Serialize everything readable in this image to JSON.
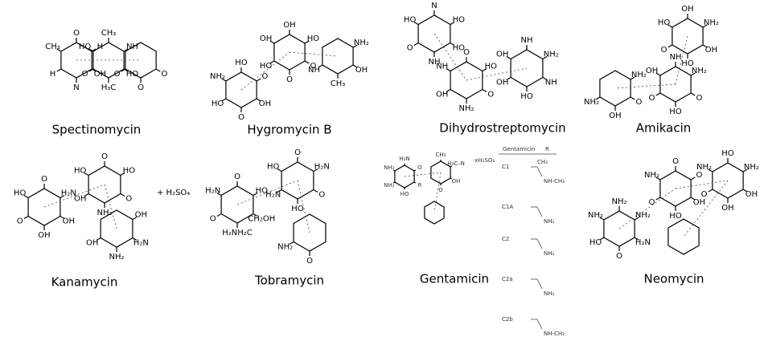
{
  "molecules": [
    {
      "name": "Spectinomycin",
      "labels": [
        "OH",
        "H",
        "O",
        "CH₃",
        "H",
        "N",
        "H₃C",
        "HO",
        "NH",
        "CH₃",
        "HO",
        "O",
        "O",
        "O",
        "O"
      ]
    },
    {
      "name": "Hygromycin B",
      "labels": [
        "OH",
        "O",
        "HO",
        "NH₂",
        "HO",
        "O",
        "O",
        "O",
        "HO",
        "OH",
        "OH",
        "HO",
        "NH",
        "CH₃",
        "OH",
        "NH₂"
      ]
    },
    {
      "name": "Dihydrostreptomycin",
      "labels": [
        "HO",
        "HO",
        "N",
        "HO",
        "O",
        "NH",
        "NH₂",
        "O",
        "HO",
        "O",
        "NH",
        "OH",
        "OH",
        "HO",
        "NH",
        "NH₂",
        "NH",
        "OH"
      ]
    },
    {
      "name": "Amikacin",
      "labels": [
        "OH",
        "NH₂",
        "OH",
        "HO",
        "O",
        "HO",
        "HO",
        "O",
        "NH₂",
        "NH",
        "OH",
        "O",
        "NH₂",
        "OH",
        "O",
        "NH₂"
      ]
    },
    {
      "name": "Kanamycin",
      "labels": [
        "OH",
        "H₂N",
        "O",
        "HO",
        "O",
        "OH",
        "NH₂",
        "O",
        "HO",
        "O",
        "HO",
        "OH",
        "OH",
        "NH₂",
        "H₂N",
        "OH"
      ],
      "salt": "+ H₂SO₄"
    },
    {
      "name": "Tobramycin",
      "labels": [
        "CH₂OH",
        "HO",
        "O",
        "H₂N",
        "O",
        "H₂NH₂C",
        "HO",
        "O",
        "H₂N",
        "O",
        "HO",
        "H₂N",
        "NH₂",
        "O"
      ]
    },
    {
      "name": "Gentamicin",
      "labels": [
        "R",
        "O",
        "H₂N",
        "NH₂",
        "NH₂",
        "HO",
        "O",
        "OH",
        "H₃C–N",
        "CH₃"
      ],
      "salt": "·xH₂SO₄"
    },
    {
      "name": "Neomycin",
      "labels": [
        "H₂N",
        "NH₂",
        "NH₂",
        "NH₂",
        "HO",
        "O",
        "HO",
        "OH",
        "O",
        "O",
        "NH₂",
        "O",
        "O",
        "OH",
        "OH",
        "NH₂",
        "HO",
        "NH₂"
      ]
    }
  ],
  "gentamicin_table": {
    "header": [
      "Gentamicin",
      "R"
    ],
    "rows": [
      {
        "label": "C1",
        "group": "NH-CH₃",
        "methyl": "CH₃"
      },
      {
        "label": "C1A",
        "group": "NH₂"
      },
      {
        "label": "C2",
        "group": "NH₂"
      },
      {
        "label": "C2a",
        "group": "NH₂"
      },
      {
        "label": "C2b",
        "group": "NH-CH₃"
      }
    ]
  }
}
